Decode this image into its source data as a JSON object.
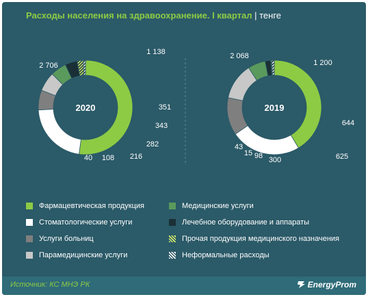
{
  "header": {
    "title": "Расходы населения  на здравоохранение. I квартал",
    "separator": "|",
    "unit": "тенге"
  },
  "chart_data": [
    {
      "type": "donut",
      "center_label": "2020",
      "categories": [
        "Фармацевтическая продукция",
        "Стоматологические услуги",
        "Услуги больниц",
        "Парамедицинские услуги",
        "Медицинские услуги",
        "Лечебное оборудование и аппараты",
        "Прочая продукция медицинского назначения",
        "Неформальные расходы"
      ],
      "values": [
        2706,
        1138,
        351,
        343,
        282,
        216,
        108,
        40
      ],
      "data_labels": [
        "2 706",
        "1 138",
        "351",
        "343",
        "282",
        "216",
        "108",
        "40"
      ]
    },
    {
      "type": "donut",
      "center_label": "2019",
      "categories": [
        "Фармацевтическая продукция",
        "Стоматологические услуги",
        "Услуги больниц",
        "Парамедицинские услуги",
        "Медицинские услуги",
        "Лечебное оборудование и аппараты",
        "Прочая продукция медицинского назначения",
        "Неформальные расходы"
      ],
      "values": [
        2068,
        1200,
        644,
        625,
        300,
        98,
        15,
        43
      ],
      "data_labels": [
        "2 068",
        "1 200",
        "644",
        "625",
        "300",
        "98",
        "15",
        "43"
      ]
    }
  ],
  "colors": {
    "Фармацевтическая продукция": "#8dcb45",
    "Стоматологические услуги": "#ffffff",
    "Услуги больниц": "#7f7f7f",
    "Парамедицинские услуги": "#c8c8c8",
    "Медицинские услуги": "#5a9a5c",
    "Лечебное оборудование и аппараты": "#1a3036",
    "Прочая продукция медицинского назначения": "hatch-green",
    "Неформальные расходы": "hatch-white"
  },
  "legend": {
    "items": [
      "Фармацевтическая продукция",
      "Стоматологические услуги",
      "Услуги больниц",
      "Парамедицинские услуги",
      "Медицинские услуги",
      "Лечебное оборудование и аппараты",
      "Прочая продукция медицинского назначения",
      "Неформальные расходы"
    ]
  },
  "footer": {
    "source": "Источник: КС МНЭ РК",
    "brand": "EnergyProm"
  }
}
